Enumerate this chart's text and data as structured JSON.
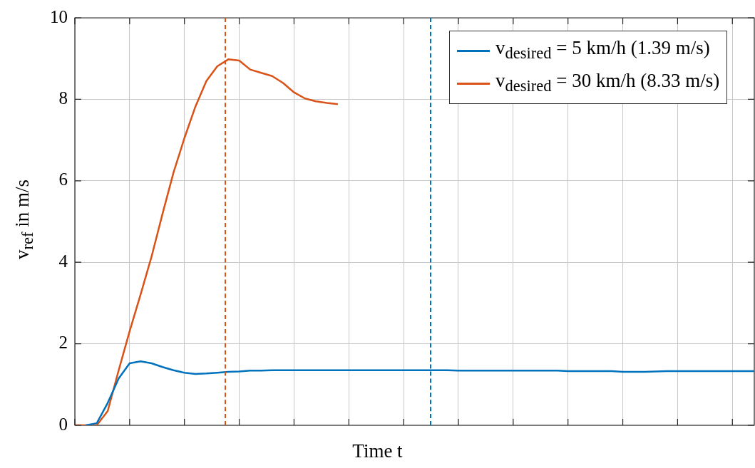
{
  "chart_data": {
    "type": "line",
    "xlabel": "Time t",
    "ylabel": "v$_{ref}$ in m/s",
    "categories": [
      null,
      null,
      null,
      null,
      null,
      null,
      null,
      null,
      null,
      null,
      null,
      null,
      null,
      null,
      null,
      null,
      null,
      null,
      null,
      null,
      null,
      null,
      null,
      null,
      null,
      null,
      null,
      null,
      null,
      null,
      null,
      null,
      null,
      null,
      null,
      null,
      null,
      null,
      null,
      null,
      null,
      null,
      null,
      null,
      null,
      null,
      null,
      null,
      null,
      null,
      null,
      null,
      null,
      null,
      null,
      null,
      null,
      null,
      null,
      null,
      null,
      null,
      null
    ],
    "ylim": [
      0,
      10
    ],
    "yticks": [
      0,
      2,
      4,
      6,
      8,
      10
    ],
    "tick_labels": "y",
    "grid": true,
    "legend": "top right",
    "marker": "none",
    "line_style": "solid",
    "series": [
      {
        "name": "v$_{desired}$ = 5 km/h (1.39 m/s)",
        "color": "#0072bd",
        "values": [
          null,
          0,
          0.05,
          0.55,
          1.15,
          1.52,
          1.57,
          1.52,
          1.43,
          1.35,
          1.29,
          1.26,
          1.27,
          1.29,
          1.31,
          1.32,
          1.34,
          1.34,
          1.35,
          1.35,
          1.35,
          1.35,
          1.35,
          1.35,
          1.35,
          1.35,
          1.35,
          1.35,
          1.35,
          1.35,
          1.35,
          1.35,
          1.35,
          1.35,
          1.35,
          1.34,
          1.34,
          1.34,
          1.34,
          1.34,
          1.34,
          1.34,
          1.34,
          1.34,
          1.34,
          1.33,
          1.33,
          1.33,
          1.33,
          1.33,
          1.31,
          1.31,
          1.31,
          1.32,
          1.33,
          1.33,
          1.33,
          1.33,
          1.33,
          1.33,
          1.33,
          1.33,
          1.33
        ]
      },
      {
        "name": "v$_{desired}$ = 30 km/h (8.33 m/s)",
        "color": "#d95319",
        "values": [
          0,
          0,
          0,
          0.35,
          1.35,
          2.31,
          3.21,
          4.14,
          5.19,
          6.2,
          7.05,
          7.82,
          8.45,
          8.81,
          8.98,
          8.95,
          8.73,
          8.65,
          8.57,
          8.4,
          8.17,
          8.02,
          7.95,
          7.91,
          7.88,
          null,
          null,
          null,
          null,
          null,
          null,
          null,
          null,
          null,
          null,
          null,
          null,
          null,
          null,
          null,
          null,
          null,
          null,
          null,
          null,
          null,
          null,
          null,
          null,
          null,
          null,
          null,
          null,
          null,
          null,
          null,
          null,
          null,
          null,
          null,
          null,
          null,
          null
        ]
      }
    ]
  }
}
